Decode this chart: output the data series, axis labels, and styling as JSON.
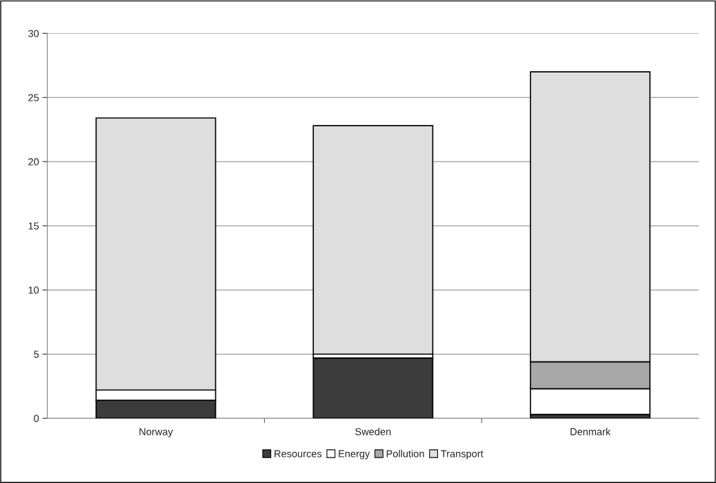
{
  "chart_data": {
    "type": "bar",
    "stacked": true,
    "categories": [
      "Norway",
      "Sweden",
      "Denmark"
    ],
    "series": [
      {
        "name": "Resources",
        "color": "#3c3c3c",
        "values": [
          1.4,
          4.7,
          0.3
        ]
      },
      {
        "name": "Energy",
        "color": "#ffffff",
        "values": [
          0.8,
          0.3,
          2.0
        ]
      },
      {
        "name": "Pollution",
        "color": "#a8a8a8",
        "values": [
          0,
          0,
          2.1
        ]
      },
      {
        "name": "Transport",
        "color": "#dedede",
        "values": [
          21.2,
          17.8,
          22.6
        ]
      }
    ],
    "ylim": [
      0,
      30
    ],
    "yticks": [
      0,
      5,
      10,
      15,
      20,
      25,
      30
    ],
    "grid": "y",
    "legend": "bottom"
  }
}
